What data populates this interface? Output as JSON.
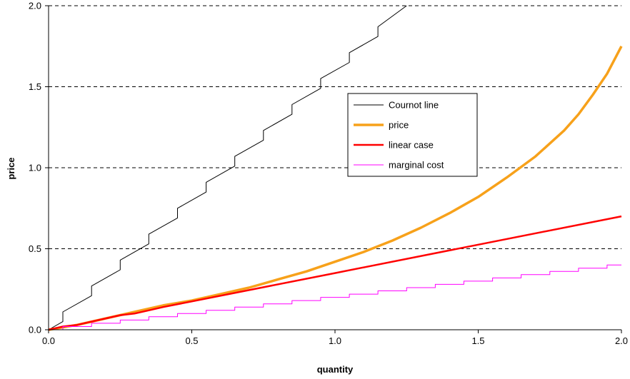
{
  "chart_data": {
    "type": "line",
    "xlabel": "quantity",
    "ylabel": "price",
    "xlim": [
      0,
      2
    ],
    "ylim": [
      0,
      2
    ],
    "xticks": [
      "0.0",
      "0.5",
      "1.0",
      "1.5",
      "2.0"
    ],
    "yticks": [
      "0.0",
      "0.5",
      "1.0",
      "1.5",
      "2.0"
    ],
    "grid": "horizontal dashed",
    "legend_position": "center",
    "series": [
      {
        "name": "Cournot line",
        "color": "#000000",
        "style": "step",
        "x": [
          0,
          0.05,
          0.05,
          0.15,
          0.15,
          0.25,
          0.25,
          0.35,
          0.35,
          0.45,
          0.45,
          0.55,
          0.55,
          0.65,
          0.65,
          0.75,
          0.75,
          0.85,
          0.85,
          0.95,
          0.95,
          1.05,
          1.05,
          1.15,
          1.15,
          1.25
        ],
        "y": [
          0,
          0.05,
          0.11,
          0.21,
          0.27,
          0.37,
          0.43,
          0.53,
          0.59,
          0.69,
          0.75,
          0.85,
          0.91,
          1.01,
          1.07,
          1.17,
          1.23,
          1.33,
          1.39,
          1.49,
          1.55,
          1.65,
          1.71,
          1.81,
          1.87,
          2.0
        ]
      },
      {
        "name": "price",
        "color": "#f7a11a",
        "style": "line",
        "x": [
          0,
          0.1,
          0.2,
          0.3,
          0.4,
          0.5,
          0.6,
          0.7,
          0.8,
          0.9,
          1.0,
          1.1,
          1.2,
          1.3,
          1.4,
          1.5,
          1.6,
          1.7,
          1.8,
          1.85,
          1.9,
          1.95,
          2.0
        ],
        "y": [
          0,
          0.03,
          0.07,
          0.11,
          0.15,
          0.18,
          0.22,
          0.26,
          0.31,
          0.36,
          0.42,
          0.48,
          0.55,
          0.63,
          0.72,
          0.82,
          0.94,
          1.07,
          1.23,
          1.33,
          1.45,
          1.58,
          1.75
        ]
      },
      {
        "name": "linear case",
        "color": "#ff0000",
        "style": "line",
        "x": [
          0,
          0.05,
          0.1,
          0.15,
          0.2,
          0.25,
          0.3,
          0.35,
          0.4,
          0.5,
          1.0,
          1.5,
          2.0
        ],
        "y": [
          0,
          0.02,
          0.03,
          0.05,
          0.07,
          0.09,
          0.1,
          0.12,
          0.14,
          0.175,
          0.35,
          0.525,
          0.7
        ]
      },
      {
        "name": "marginal cost",
        "color": "#ff00ff",
        "style": "step",
        "x": [
          0,
          0.05,
          0.05,
          0.15,
          0.15,
          0.25,
          0.25,
          0.35,
          0.35,
          0.45,
          0.45,
          0.55,
          0.55,
          0.65,
          0.65,
          0.75,
          0.75,
          0.85,
          0.85,
          0.95,
          0.95,
          1.05,
          1.05,
          1.15,
          1.15,
          1.25,
          1.25,
          1.35,
          1.35,
          1.45,
          1.45,
          1.55,
          1.55,
          1.65,
          1.65,
          1.75,
          1.75,
          1.85,
          1.85,
          1.95,
          1.95,
          2.0
        ],
        "y": [
          0,
          0,
          0.02,
          0.02,
          0.04,
          0.04,
          0.06,
          0.06,
          0.08,
          0.08,
          0.1,
          0.1,
          0.12,
          0.12,
          0.14,
          0.14,
          0.16,
          0.16,
          0.18,
          0.18,
          0.2,
          0.2,
          0.22,
          0.22,
          0.24,
          0.24,
          0.26,
          0.26,
          0.28,
          0.28,
          0.3,
          0.3,
          0.32,
          0.32,
          0.34,
          0.34,
          0.36,
          0.36,
          0.38,
          0.38,
          0.4,
          0.4
        ]
      }
    ]
  }
}
